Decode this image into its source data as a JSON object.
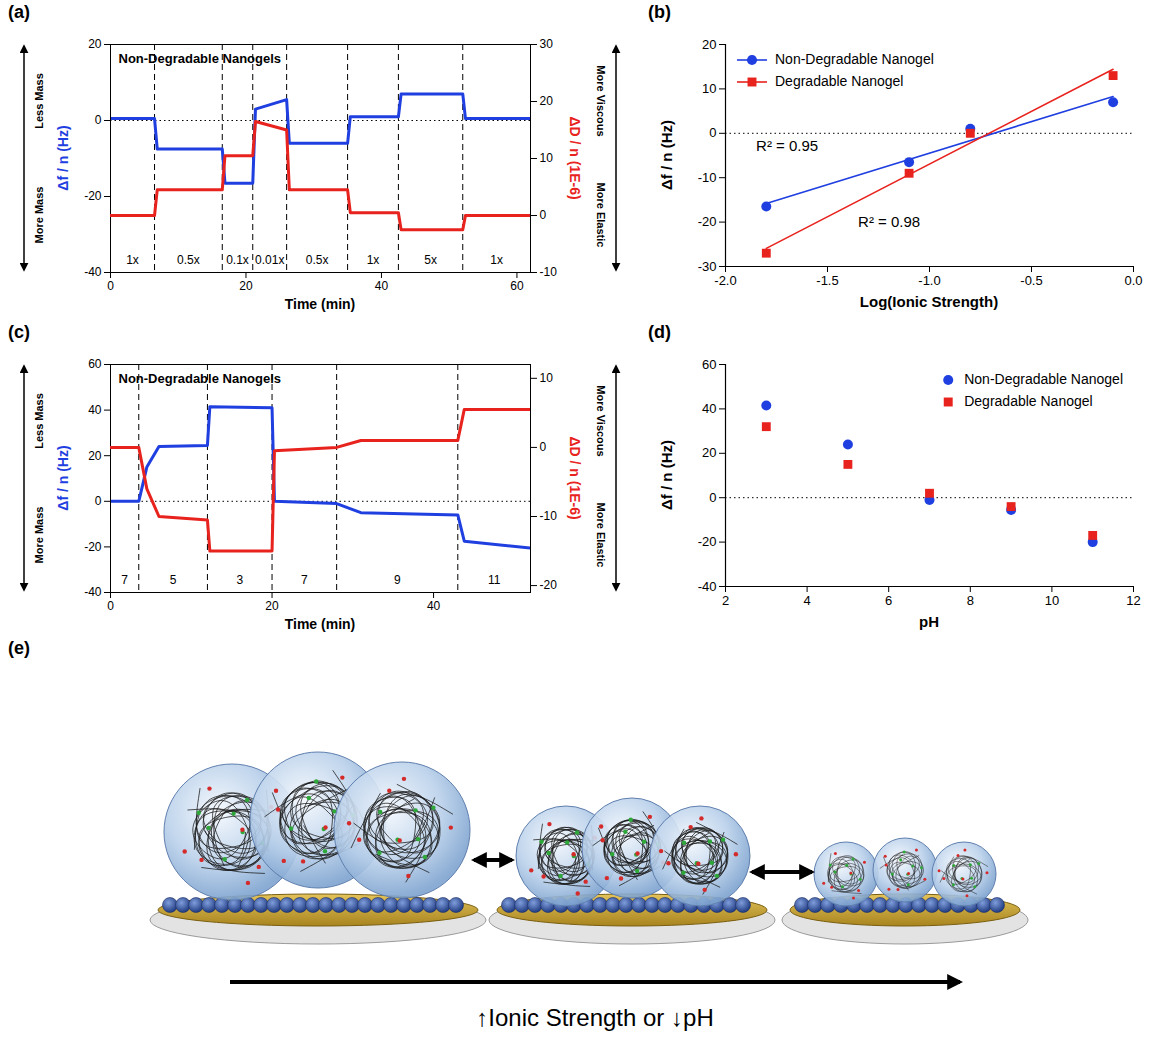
{
  "chart_data": [
    {
      "type": "line",
      "label": "(a)",
      "title": "Non-Degradable Nanogels",
      "xlabel": "Time (min)",
      "x": [
        0,
        6.5,
        6.9,
        16.5,
        16.9,
        21,
        21.4,
        26,
        26.4,
        35,
        35.4,
        42.5,
        42.9,
        52,
        52.4,
        62
      ],
      "xlim": [
        0,
        62
      ],
      "xticks": [
        0,
        20,
        40,
        60
      ],
      "ylim": [
        -40,
        20
      ],
      "yticks": [
        -40,
        -20,
        0,
        20
      ],
      "y2lim": [
        -10,
        30
      ],
      "y2ticks": [
        -10,
        0,
        10,
        20,
        30
      ],
      "series": [
        {
          "name": "Δf / n (Hz)",
          "color": "#1f3fe0",
          "values": [
            0.5,
            0.5,
            -7.5,
            -7.5,
            -16.5,
            -16.5,
            3,
            5.5,
            -6,
            -6,
            1,
            1,
            7,
            7,
            0.5,
            0.5
          ]
        },
        {
          "name": "ΔD / n (1E-6)",
          "color": "#e8231e",
          "axis": "y2",
          "values": [
            0,
            0,
            4.5,
            4.5,
            10.5,
            10.5,
            16.5,
            15,
            4.5,
            4.5,
            0.5,
            0.5,
            -2.5,
            -2.5,
            0,
            0
          ]
        }
      ],
      "segments": {
        "boundaries": [
          6.5,
          16.5,
          21,
          26,
          35,
          42.5,
          52
        ],
        "labels": [
          "1x",
          "0.5x",
          "0.1x",
          "0.01x",
          "0.5x",
          "1x",
          "5x",
          "1x"
        ]
      },
      "annotations": {
        "y": [
          "Less Mass",
          "More Mass"
        ],
        "y2": [
          "More Viscous",
          "More Elastic"
        ]
      }
    },
    {
      "type": "regression",
      "label": "(b)",
      "xlabel": "Log(Ionic Strength)",
      "ylabel": "Δf / n (Hz)",
      "x": [
        -1.8,
        -1.1,
        -0.8,
        -0.1
      ],
      "xlim": [
        -2,
        0
      ],
      "xticks": [
        {
          "value": -2,
          "label": "-2.0"
        },
        -1.5,
        {
          "value": -1,
          "label": "-1.0"
        },
        -0.5,
        {
          "value": 0,
          "label": "0.0"
        }
      ],
      "ylim": [
        -30,
        20
      ],
      "yticks": [
        -30,
        -20,
        -10,
        0,
        10,
        20
      ],
      "legend": "top-left",
      "series": [
        {
          "name": "Non-Degradable Nanogel",
          "color": "#1f3fe0",
          "marker": "circle",
          "values": [
            -16.5,
            -6.5,
            1,
            7
          ]
        },
        {
          "name": "Degradable Nanogel",
          "color": "#e8231e",
          "marker": "square",
          "values": [
            -27,
            -9,
            0,
            13
          ]
        }
      ],
      "annotations": [
        {
          "text": "R² = 0.95",
          "x": -1.85,
          "y": -3
        },
        {
          "text": "R² = 0.98",
          "x": -1.35,
          "y": -20
        }
      ]
    },
    {
      "type": "line",
      "label": "(c)",
      "title": "Non-Degradable Nanogels",
      "xlabel": "Time (min)",
      "x": [
        0,
        3.5,
        4.5,
        6,
        12,
        12.3,
        20,
        20.3,
        28,
        31,
        43,
        43.8,
        52
      ],
      "xlim": [
        0,
        52
      ],
      "xticks": [
        0,
        20,
        40
      ],
      "ylim": [
        -40,
        60
      ],
      "yticks": [
        -40,
        -20,
        0,
        20,
        40,
        60
      ],
      "y2lim": [
        -21,
        12
      ],
      "y2ticks": [
        -20,
        -10,
        0,
        10
      ],
      "series": [
        {
          "name": "Δf / n (Hz)",
          "color": "#1f3fe0",
          "values": [
            0,
            0,
            15,
            24,
            24.5,
            41.5,
            41,
            0,
            -1,
            -5,
            -6,
            -17.5,
            -20.5
          ]
        },
        {
          "name": "ΔD / n (1E-6)",
          "color": "#e8231e",
          "axis": "y2",
          "values": [
            0,
            0,
            -6,
            -10,
            -10.5,
            -15,
            -15,
            -0.5,
            0,
            1,
            1,
            5.5,
            5.5
          ]
        }
      ],
      "segments": {
        "boundaries": [
          3.5,
          12,
          20,
          28,
          43
        ],
        "labels": [
          "7",
          "5",
          "3",
          "7",
          "9",
          "11"
        ]
      },
      "annotations": {
        "y": [
          "Less Mass",
          "More Mass"
        ],
        "y2": [
          "More Viscous",
          "More Elastic"
        ]
      }
    },
    {
      "type": "scatter",
      "label": "(d)",
      "xlabel": "pH",
      "ylabel": "Δf / n (Hz)",
      "x": [
        3,
        5,
        7,
        9,
        11
      ],
      "xlim": [
        2,
        12
      ],
      "xticks": [
        2,
        4,
        6,
        8,
        10,
        12
      ],
      "ylim": [
        -40,
        60
      ],
      "yticks": [
        -40,
        -20,
        0,
        20,
        40,
        60
      ],
      "legend": "top-right",
      "series": [
        {
          "name": "Non-Degradable Nanogel",
          "color": "#1f3fe0",
          "marker": "circle",
          "values": [
            41.5,
            24,
            -1,
            -5.5,
            -20
          ]
        },
        {
          "name": "Degradable Nanogel",
          "color": "#e8231e",
          "marker": "square",
          "values": [
            32,
            15,
            2,
            -4,
            -17
          ]
        }
      ]
    }
  ],
  "diagram": {
    "label": "(e)",
    "caption": "↑Ionic Strength or ↓pH"
  }
}
